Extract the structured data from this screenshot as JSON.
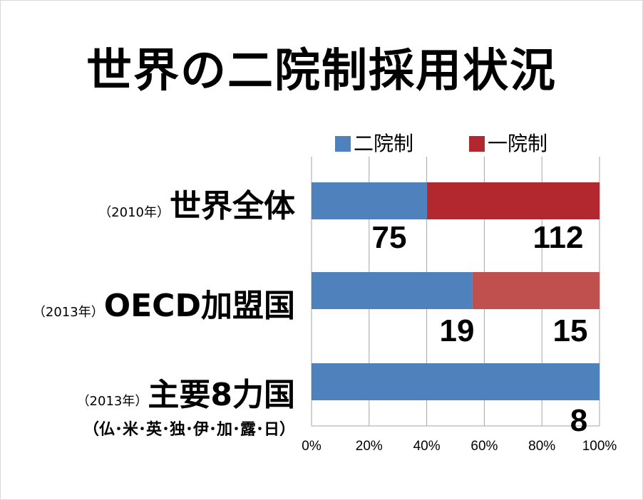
{
  "title": "世界の二院制採用状況",
  "legend": [
    {
      "name": "二院制",
      "color": "#4f81bd"
    },
    {
      "name": "一院制",
      "color": "#b3272f"
    }
  ],
  "categories": [
    {
      "year": "（2010年）",
      "name": "世界全体",
      "sub": ""
    },
    {
      "year": "（2013年）",
      "name": "OECD加盟国",
      "sub": ""
    },
    {
      "year": "（2013年）",
      "name": "主要8力国",
      "sub": "（仏･米･英･独･伊･加･露･日）"
    }
  ],
  "chart_data": {
    "type": "bar",
    "orientation": "horizontal",
    "stacked": "percent",
    "title": "世界の二院制採用状況",
    "categories": [
      "世界全体",
      "OECD加盟国",
      "主要8力国"
    ],
    "series": [
      {
        "name": "二院制",
        "values": [
          75,
          19,
          8
        ],
        "color": "#4f81bd"
      },
      {
        "name": "一院制",
        "values": [
          112,
          15,
          0
        ],
        "colors": [
          "#b3272f",
          "#c0504d",
          "#c0504d"
        ]
      }
    ],
    "data_labels": [
      "75",
      "112",
      "19",
      "15",
      "8"
    ],
    "x_ticks": [
      "0%",
      "20%",
      "40%",
      "60%",
      "80%",
      "100%"
    ],
    "xlim": [
      0,
      100
    ],
    "grid": true,
    "legend_position": "top"
  }
}
